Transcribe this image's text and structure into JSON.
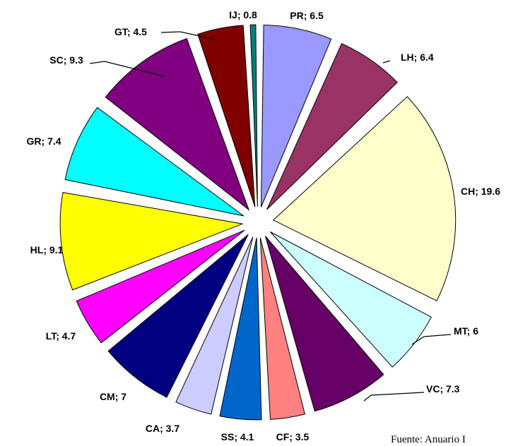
{
  "chart_data": {
    "type": "pie",
    "exploded": true,
    "legend": "none",
    "slices": [
      {
        "label": "PR; 6.5",
        "name": "PR",
        "value": 6.5,
        "color": "#9999FF"
      },
      {
        "label": "LH; 6.4",
        "name": "LH",
        "value": 6.4,
        "color": "#993366"
      },
      {
        "label": "CH; 19.6",
        "name": "CH",
        "value": 19.6,
        "color": "#FFFFCC"
      },
      {
        "label": "MT; 6",
        "name": "MT",
        "value": 6,
        "color": "#CCFFFF"
      },
      {
        "label": "VC; 7.3",
        "name": "VC",
        "value": 7.3,
        "color": "#660066"
      },
      {
        "label": "CF; 3.5",
        "name": "CF",
        "value": 3.5,
        "color": "#FF8080"
      },
      {
        "label": "SS; 4.1",
        "name": "SS",
        "value": 4.1,
        "color": "#0066CC"
      },
      {
        "label": "CA; 3.7",
        "name": "CA",
        "value": 3.7,
        "color": "#CCCCFF"
      },
      {
        "label": "CM; 7",
        "name": "CM",
        "value": 7,
        "color": "#000080"
      },
      {
        "label": "LT; 4.7",
        "name": "LT",
        "value": 4.7,
        "color": "#FF00FF"
      },
      {
        "label": "HL; 9.1",
        "name": "HL",
        "value": 9.1,
        "color": "#FFFF00"
      },
      {
        "label": "GR; 7.4",
        "name": "GR",
        "value": 7.4,
        "color": "#00FFFF"
      },
      {
        "label": "SC; 9.3",
        "name": "SC",
        "value": 9.3,
        "color": "#800080"
      },
      {
        "label": "GT; 4.5",
        "name": "GT",
        "value": 4.5,
        "color": "#800000"
      },
      {
        "label": "IJ; 0.8",
        "name": "IJ",
        "value": 0.8,
        "color": "#008080"
      }
    ]
  },
  "source_note": "Fuente: Anuario I"
}
